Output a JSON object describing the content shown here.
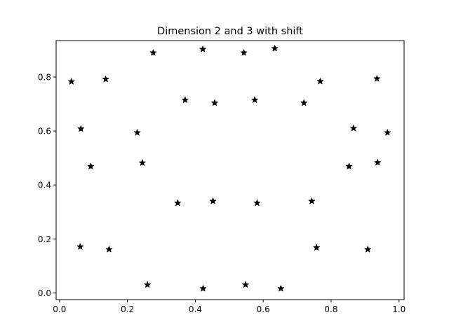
{
  "chart_data": {
    "type": "scatter",
    "title": "Dimension 2 and 3 with shift",
    "xlabel": "",
    "ylabel": "",
    "xlim": [
      -0.01,
      1.015
    ],
    "ylim": [
      -0.025,
      0.935
    ],
    "xticks": [
      0.0,
      0.2,
      0.4,
      0.6,
      0.8,
      1.0
    ],
    "xtick_labels": [
      "0.0",
      "0.2",
      "0.4",
      "0.6",
      "0.8",
      "1.0"
    ],
    "yticks": [
      0.0,
      0.2,
      0.4,
      0.6,
      0.8
    ],
    "ytick_labels": [
      "0.0",
      "0.2",
      "0.4",
      "0.6",
      "0.8"
    ],
    "grid": false,
    "marker": "star",
    "marker_color": "#000000",
    "series": [
      {
        "points": [
          [
            0.035,
            0.783
          ],
          [
            0.063,
            0.608
          ],
          [
            0.092,
            0.469
          ],
          [
            0.061,
            0.171
          ],
          [
            0.136,
            0.792
          ],
          [
            0.146,
            0.161
          ],
          [
            0.229,
            0.594
          ],
          [
            0.244,
            0.482
          ],
          [
            0.276,
            0.89
          ],
          [
            0.259,
            0.03
          ],
          [
            0.37,
            0.715
          ],
          [
            0.348,
            0.333
          ],
          [
            0.422,
            0.903
          ],
          [
            0.423,
            0.016
          ],
          [
            0.457,
            0.704
          ],
          [
            0.452,
            0.34
          ],
          [
            0.543,
            0.89
          ],
          [
            0.548,
            0.03
          ],
          [
            0.575,
            0.715
          ],
          [
            0.582,
            0.333
          ],
          [
            0.634,
            0.906
          ],
          [
            0.652,
            0.016
          ],
          [
            0.72,
            0.704
          ],
          [
            0.743,
            0.34
          ],
          [
            0.768,
            0.784
          ],
          [
            0.757,
            0.168
          ],
          [
            0.853,
            0.469
          ],
          [
            0.866,
            0.61
          ],
          [
            0.908,
            0.161
          ],
          [
            0.935,
            0.794
          ],
          [
            0.937,
            0.483
          ],
          [
            0.966,
            0.594
          ]
        ]
      }
    ]
  }
}
